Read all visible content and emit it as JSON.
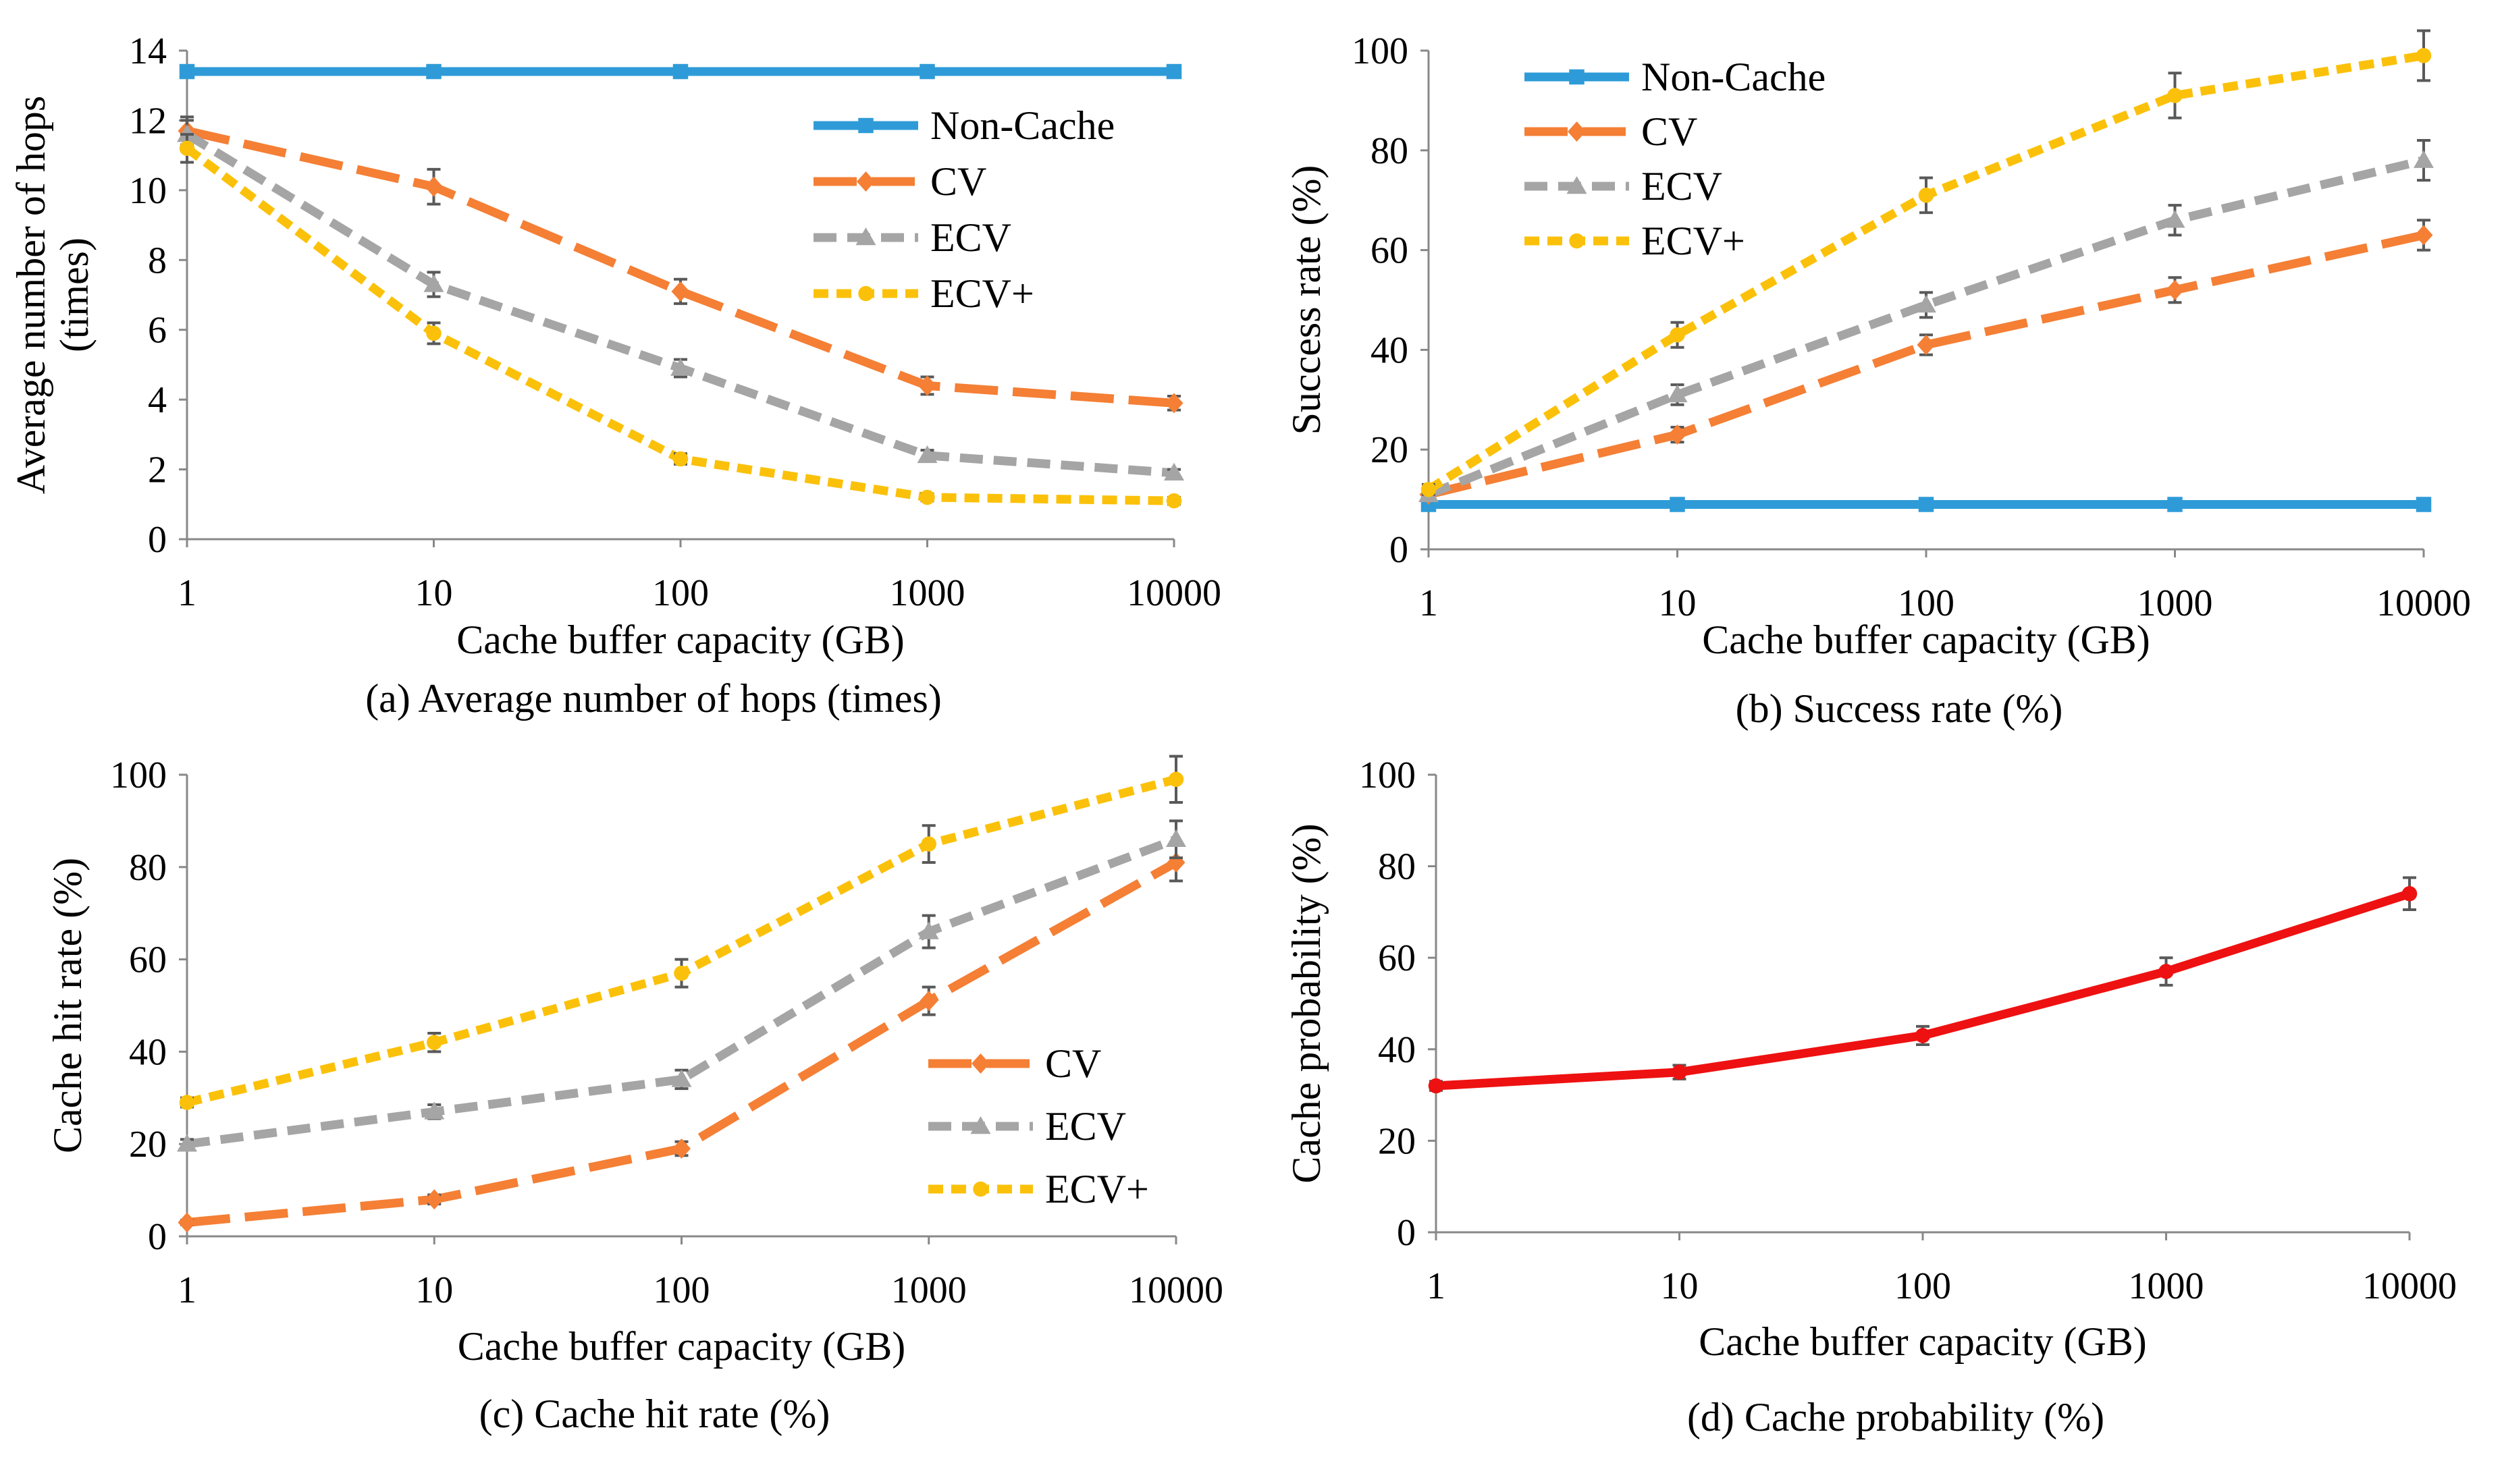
{
  "colors": {
    "non_cache": "#2E9BD8",
    "cv": "#F47F35",
    "ecv": "#A5A5A5",
    "ecv_plus": "#FBC10A",
    "prob": "#EE1111",
    "errorbar": "#595959"
  },
  "chart_data": [
    {
      "id": "a",
      "type": "line",
      "caption": "(a) Average number of hops (times)",
      "xlabel": "Cache buffer capacity (GB)",
      "ylabel_lines": [
        "Average number of hops",
        "(times)"
      ],
      "categories": [
        "1",
        "10",
        "100",
        "1000",
        "10000"
      ],
      "ylim": [
        0,
        14
      ],
      "yticks": [
        0,
        2,
        4,
        6,
        8,
        10,
        12,
        14
      ],
      "legend_position": "top-right",
      "series": [
        {
          "name": "Non-Cache",
          "key": "non_cache",
          "marker": "square",
          "dash": "solid",
          "values": [
            13.4,
            13.4,
            13.4,
            13.4,
            13.4
          ],
          "errors": [
            0,
            0,
            0,
            0,
            0
          ]
        },
        {
          "name": "CV",
          "key": "cv",
          "marker": "diamond",
          "dash": "long",
          "values": [
            11.7,
            10.1,
            7.1,
            4.4,
            3.9
          ],
          "errors": [
            0.4,
            0.5,
            0.35,
            0.25,
            0.2
          ]
        },
        {
          "name": "ECV",
          "key": "ecv",
          "marker": "triangle",
          "dash": "medium",
          "values": [
            11.6,
            7.3,
            4.9,
            2.4,
            1.9
          ],
          "errors": [
            0.4,
            0.35,
            0.25,
            0.15,
            0.1
          ]
        },
        {
          "name": "ECV+",
          "key": "ecv_plus",
          "marker": "circle",
          "dash": "short",
          "values": [
            11.2,
            5.9,
            2.3,
            1.2,
            1.1
          ],
          "errors": [
            0.4,
            0.3,
            0.15,
            0.1,
            0.1
          ]
        }
      ]
    },
    {
      "id": "b",
      "type": "line",
      "caption": "(b) Success rate (%)",
      "xlabel": "Cache buffer capacity (GB)",
      "ylabel_lines": [
        "Success rate (%)"
      ],
      "categories": [
        "1",
        "10",
        "100",
        "1000",
        "10000"
      ],
      "ylim": [
        0,
        100
      ],
      "yticks": [
        0,
        20,
        40,
        60,
        80,
        100
      ],
      "legend_position": "top-left",
      "series": [
        {
          "name": "Non-Cache",
          "key": "non_cache",
          "marker": "square",
          "dash": "solid",
          "values": [
            9,
            9,
            9,
            9,
            9
          ],
          "errors": [
            0,
            0,
            0,
            0,
            0
          ]
        },
        {
          "name": "CV",
          "key": "cv",
          "marker": "diamond",
          "dash": "long",
          "values": [
            11,
            23,
            41,
            52,
            63
          ],
          "errors": [
            1,
            1.5,
            2,
            2.5,
            3
          ]
        },
        {
          "name": "ECV",
          "key": "ecv",
          "marker": "triangle",
          "dash": "medium",
          "values": [
            11,
            31,
            49,
            66,
            78
          ],
          "errors": [
            1,
            2,
            2.5,
            3,
            4
          ]
        },
        {
          "name": "ECV+",
          "key": "ecv_plus",
          "marker": "circle",
          "dash": "short",
          "values": [
            12,
            43,
            71,
            91,
            99
          ],
          "errors": [
            1,
            2.5,
            3.5,
            4.5,
            5
          ]
        }
      ]
    },
    {
      "id": "c",
      "type": "line",
      "caption": "(c) Cache hit rate (%)",
      "xlabel": "Cache buffer capacity (GB)",
      "ylabel_lines": [
        "Cache hit rate (%)"
      ],
      "categories": [
        "1",
        "10",
        "100",
        "1000",
        "10000"
      ],
      "ylim": [
        0,
        100
      ],
      "yticks": [
        0,
        20,
        40,
        60,
        80,
        100
      ],
      "legend_position": "bottom-right",
      "series": [
        {
          "name": "CV",
          "key": "cv",
          "marker": "diamond",
          "dash": "long",
          "values": [
            3,
            8,
            19,
            51,
            81
          ],
          "errors": [
            0.5,
            1,
            1.5,
            3,
            4
          ]
        },
        {
          "name": "ECV",
          "key": "ecv",
          "marker": "triangle",
          "dash": "medium",
          "values": [
            20,
            27,
            34,
            66,
            86
          ],
          "errors": [
            1,
            1.5,
            2,
            3.5,
            4
          ]
        },
        {
          "name": "ECV+",
          "key": "ecv_plus",
          "marker": "circle",
          "dash": "short",
          "values": [
            29,
            42,
            57,
            85,
            99
          ],
          "errors": [
            1,
            2,
            3,
            4,
            5
          ]
        }
      ]
    },
    {
      "id": "d",
      "type": "line",
      "caption": "(d) Cache probability (%)",
      "xlabel": "Cache buffer capacity (GB)",
      "ylabel_lines": [
        "Cache probability (%)"
      ],
      "categories": [
        "1",
        "10",
        "100",
        "1000",
        "10000"
      ],
      "ylim": [
        0,
        100
      ],
      "yticks": [
        0,
        20,
        40,
        60,
        80,
        100
      ],
      "legend_position": "none",
      "series": [
        {
          "name": "Cache probability",
          "key": "prob",
          "marker": "circle",
          "dash": "solid",
          "values": [
            32,
            35,
            43,
            57,
            74
          ],
          "errors": [
            1,
            1.5,
            2,
            3,
            3.5
          ]
        }
      ]
    }
  ]
}
